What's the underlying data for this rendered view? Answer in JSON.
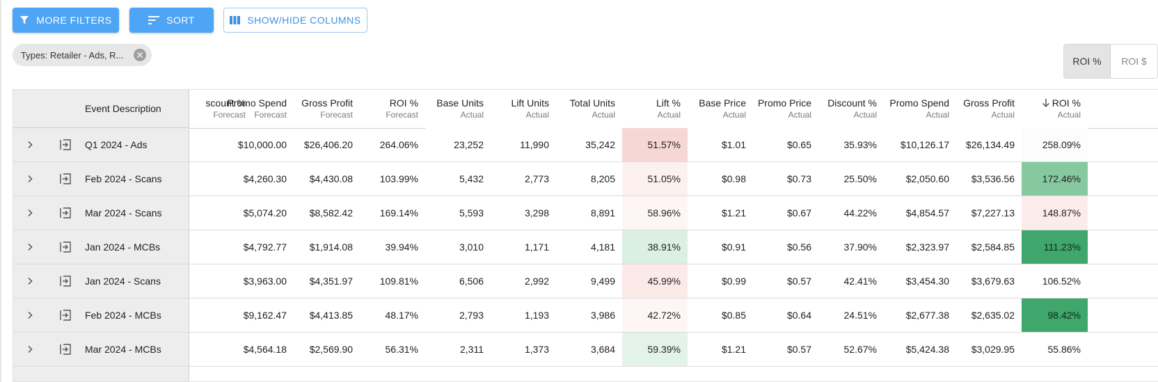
{
  "toolbar": {
    "more_filters": "MORE FILTERS",
    "sort": "SORT",
    "show_hide_columns": "SHOW/HIDE COLUMNS"
  },
  "filter_chip": {
    "label": "Types: Retailer - Ads, R..."
  },
  "roi_toggle": {
    "options": [
      "ROI %",
      "ROI $"
    ],
    "selected": "ROI %"
  },
  "colors": {
    "primary": "#4ea4f5",
    "red_strong": "#f7d7d5",
    "red_light": "#fdf1f0",
    "red_faint": "#fdf6f5",
    "green_strong": "#3fa66c",
    "green_medium": "#86c9a0",
    "green_light": "#e4f3e9",
    "green_faint": "#eef7f1"
  },
  "table": {
    "pinned_header": "Event Description",
    "headers": [
      {
        "title": "scount %",
        "sub": "Forecast"
      },
      {
        "title": "Promo Spend",
        "sub": "Forecast"
      },
      {
        "title": "Gross Profit",
        "sub": "Forecast"
      },
      {
        "title": "ROI %",
        "sub": "Forecast"
      },
      {
        "title": "Base Units",
        "sub": "Actual"
      },
      {
        "title": "Lift Units",
        "sub": "Actual"
      },
      {
        "title": "Total Units",
        "sub": "Actual"
      },
      {
        "title": "Lift %",
        "sub": "Actual"
      },
      {
        "title": "Base Price",
        "sub": "Actual"
      },
      {
        "title": "Promo Price",
        "sub": "Actual"
      },
      {
        "title": "Discount %",
        "sub": "Actual"
      },
      {
        "title": "Promo Spend",
        "sub": "Actual"
      },
      {
        "title": "Gross Profit",
        "sub": "Actual"
      },
      {
        "title": "ROI %",
        "sub": "Actual"
      }
    ],
    "rows": [
      {
        "desc": "Q1 2024 - Ads",
        "cells": [
          "",
          "$10,000.00",
          "$26,406.20",
          "264.06%",
          "23,252",
          "11,990",
          "35,242",
          "51.57%",
          "$1.01",
          "$0.65",
          "35.93%",
          "$10,126.17",
          "$26,134.49",
          "258.09%"
        ]
      },
      {
        "desc": "Feb 2024 - Scans",
        "cells": [
          "",
          "$4,260.30",
          "$4,430.08",
          "103.99%",
          "5,432",
          "2,773",
          "8,205",
          "51.05%",
          "$0.98",
          "$0.73",
          "25.50%",
          "$2,050.60",
          "$3,536.56",
          "172.46%"
        ]
      },
      {
        "desc": "Mar 2024 - Scans",
        "cells": [
          "",
          "$5,074.20",
          "$8,582.42",
          "169.14%",
          "5,593",
          "3,298",
          "8,891",
          "58.96%",
          "$1.21",
          "$0.67",
          "44.22%",
          "$4,854.57",
          "$7,227.13",
          "148.87%"
        ]
      },
      {
        "desc": "Jan 2024 - MCBs",
        "cells": [
          "",
          "$4,792.77",
          "$1,914.08",
          "39.94%",
          "3,010",
          "1,171",
          "4,181",
          "38.91%",
          "$0.91",
          "$0.56",
          "37.90%",
          "$2,323.97",
          "$2,584.85",
          "111.23%"
        ]
      },
      {
        "desc": "Jan 2024 - Scans",
        "cells": [
          "",
          "$3,963.00",
          "$4,351.97",
          "109.81%",
          "6,506",
          "2,992",
          "9,499",
          "45.99%",
          "$0.99",
          "$0.57",
          "42.41%",
          "$3,454.30",
          "$3,679.63",
          "106.52%"
        ]
      },
      {
        "desc": "Feb 2024 - MCBs",
        "cells": [
          "",
          "$9,162.47",
          "$4,413.85",
          "48.17%",
          "2,793",
          "1,193",
          "3,986",
          "42.72%",
          "$0.85",
          "$0.64",
          "24.51%",
          "$2,677.38",
          "$2,635.02",
          "98.42%"
        ]
      },
      {
        "desc": "Mar 2024 - MCBs",
        "cells": [
          "",
          "$4,564.18",
          "$2,569.90",
          "56.31%",
          "2,311",
          "1,373",
          "3,684",
          "59.39%",
          "$1.21",
          "$0.57",
          "52.67%",
          "$5,424.38",
          "$3,029.95",
          "55.86%"
        ]
      }
    ],
    "lift_colors": [
      "#f7d7d5",
      "#fdf1f0",
      "#fdf6f5",
      "#dcefe3",
      "#fbeae8",
      "#fdf6f5",
      "#e4f3e9"
    ],
    "roi_colors": [
      "#fcfcfc",
      "#86c9a0",
      "#fbeceb",
      "#3fa66c",
      "#ffffff",
      "#3fa66c",
      "#ffffff"
    ]
  }
}
